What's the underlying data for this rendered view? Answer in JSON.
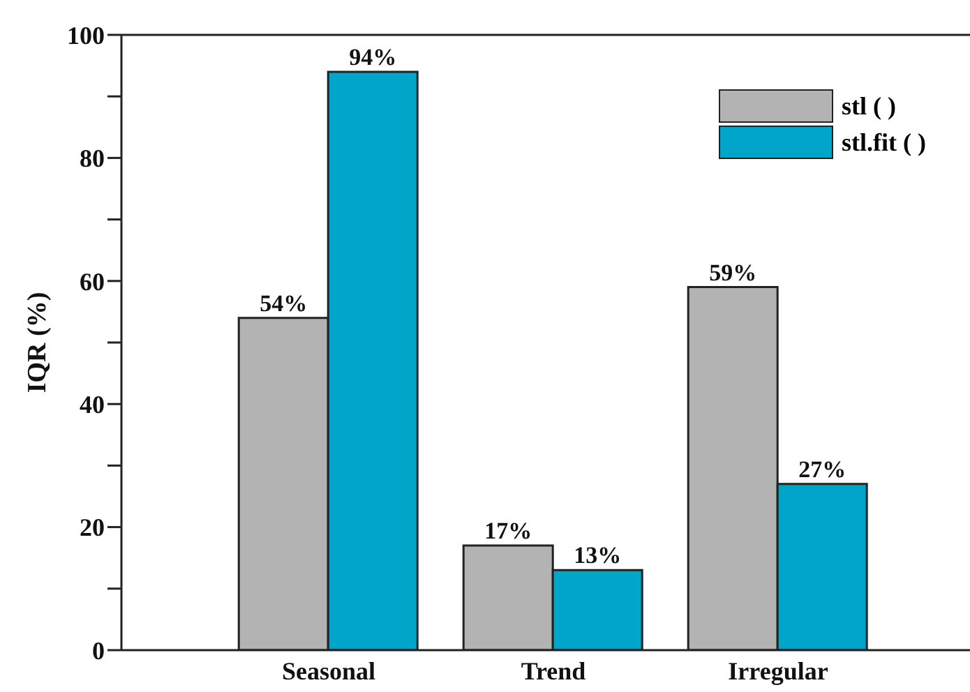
{
  "chart_data": {
    "type": "bar",
    "ylabel": "IQR (%)",
    "categories": [
      "Seasonal",
      "Trend",
      "Irregular"
    ],
    "series": [
      {
        "name": "stl ( )",
        "color": "#b3b3b3",
        "values": [
          54,
          17,
          59
        ],
        "value_labels": [
          "54%",
          "17%",
          "59%"
        ]
      },
      {
        "name": "stl.fit ( )",
        "color": "#00a5c9",
        "values": [
          94,
          13,
          27
        ],
        "value_labels": [
          "94%",
          "13%",
          "27%"
        ]
      }
    ],
    "ylim": [
      0,
      100
    ],
    "yticks": [
      0,
      {
        "value": 10,
        "label": null
      },
      20,
      {
        "value": 30,
        "label": null
      },
      40,
      {
        "value": 50,
        "label": null
      },
      60,
      {
        "value": 70,
        "label": null
      },
      80,
      {
        "value": 90,
        "label": null
      },
      100
    ],
    "grid": false,
    "legend": "top right"
  }
}
